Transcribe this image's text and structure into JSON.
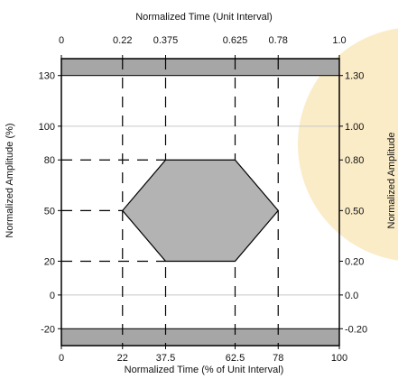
{
  "chart_data": {
    "type": "area",
    "title": "",
    "x_bottom": {
      "label": "Normalized Time (% of Unit Interval)",
      "range": [
        0,
        100
      ],
      "ticks": [
        {
          "value": 0,
          "label": "0"
        },
        {
          "value": 22,
          "label": "22"
        },
        {
          "value": 37.5,
          "label": "37.5"
        },
        {
          "value": 62.5,
          "label": "62.5"
        },
        {
          "value": 78,
          "label": "78"
        },
        {
          "value": 100,
          "label": "100"
        }
      ]
    },
    "x_top": {
      "label": "Normalized Time (Unit Interval)",
      "range": [
        0,
        1.0
      ],
      "ticks": [
        {
          "value": 0,
          "label": "0"
        },
        {
          "value": 0.22,
          "label": "0.22"
        },
        {
          "value": 0.375,
          "label": "0.375"
        },
        {
          "value": 0.625,
          "label": "0.625"
        },
        {
          "value": 0.78,
          "label": "0.78"
        },
        {
          "value": 1.0,
          "label": "1.0"
        }
      ]
    },
    "y_left": {
      "label": "Normalized Amplitude (%)",
      "range": [
        -30,
        140
      ],
      "ticks": [
        {
          "value": 130,
          "label": "130"
        },
        {
          "value": 100,
          "label": "100"
        },
        {
          "value": 80,
          "label": "80"
        },
        {
          "value": 50,
          "label": "50"
        },
        {
          "value": 20,
          "label": "20"
        },
        {
          "value": 0,
          "label": "0"
        },
        {
          "value": -20,
          "label": "-20"
        }
      ]
    },
    "y_right": {
      "label": "Normalized Amplitude",
      "ticks": [
        {
          "value": 130,
          "label": "1.30"
        },
        {
          "value": 100,
          "label": "1.00"
        },
        {
          "value": 80,
          "label": "0.80"
        },
        {
          "value": 50,
          "label": "0.50"
        },
        {
          "value": 20,
          "label": "0.20"
        },
        {
          "value": 0,
          "label": "0.0"
        },
        {
          "value": -20,
          "label": "-0.20"
        }
      ]
    },
    "mask_polygon": [
      [
        22,
        50
      ],
      [
        37.5,
        80
      ],
      [
        62.5,
        80
      ],
      [
        78,
        50
      ],
      [
        62.5,
        20
      ],
      [
        37.5,
        20
      ]
    ],
    "exclusion_bands": [
      [
        130,
        140
      ],
      [
        -30,
        -20
      ]
    ],
    "dashed_verticals": [
      22,
      37.5,
      62.5,
      78
    ],
    "reference_lines": [
      100,
      0
    ],
    "guide_lines": [
      {
        "y": 50,
        "x_to": 22
      },
      {
        "y": 20,
        "x_to": 37.5
      },
      {
        "y": 80,
        "x_to": 37.5
      }
    ],
    "grid": false,
    "colors": {
      "mask_fill": "#b3b3b3",
      "band_fill": "#a6a6a6",
      "axis": "#000000",
      "reference": "#c8c8c8",
      "watermark": "#fbecc8"
    }
  }
}
